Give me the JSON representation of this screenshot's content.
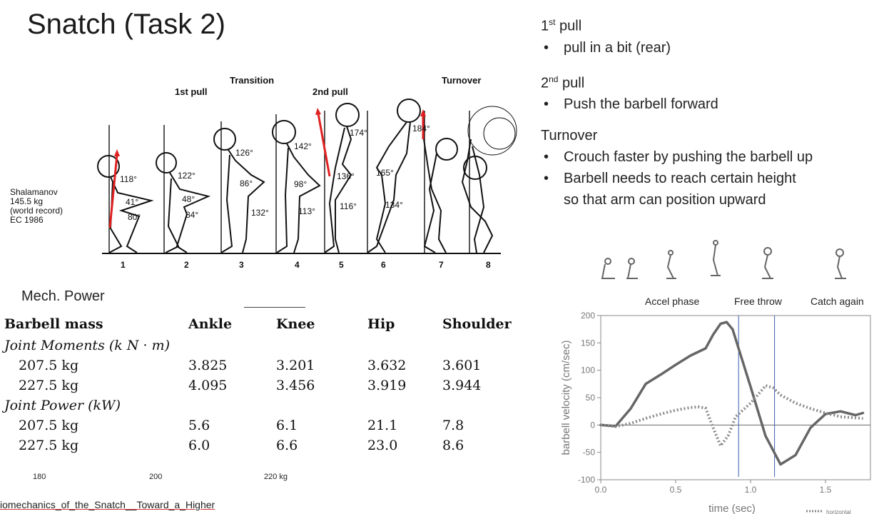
{
  "slide_title": "Snatch (Task 2)",
  "figure": {
    "phase_labels": {
      "first_pull": "1st pull",
      "transition": "Transition",
      "second_pull": "2nd pull",
      "turnover": "Turnover"
    },
    "subject_lines": [
      "Shalamanov",
      "145.5 kg",
      "(world record)",
      "EC 1986"
    ],
    "positions": [
      "1",
      "2",
      "3",
      "4",
      "5",
      "6",
      "7",
      "8"
    ],
    "angles": {
      "a1": "118°",
      "a2": "41°",
      "a3": "80°",
      "a4": "122°",
      "a5": "48°",
      "a6": "84°",
      "a7": "126°",
      "a8": "86°",
      "a9": "132°",
      "a10": "142°",
      "a11": "98°",
      "a12": "113°",
      "a13": "174°",
      "a14": "136°",
      "a15": "116°",
      "a16": "165°",
      "a17": "134°",
      "a18": "184°"
    }
  },
  "notes": {
    "first_pull": {
      "head_num": "1",
      "head_sup": "st",
      "head_rest": " pull",
      "items": [
        "pull in a bit (rear)"
      ]
    },
    "second_pull": {
      "head_num": "2",
      "head_sup": "nd",
      "head_rest": " pull",
      "items": [
        "Push the barbell forward"
      ]
    },
    "turnover": {
      "head": "Turnover",
      "items": [
        "Crouch faster by pushing the barbell up",
        "Barbell needs to reach certain height",
        "so that arm can position upward"
      ]
    }
  },
  "mech_power_label": "Mech. Power",
  "table": {
    "headers": [
      "Barbell mass",
      "Ankle",
      "Knee",
      "Hip",
      "Shoulder"
    ],
    "moments_label": "Joint Moments (k N · m)",
    "moments_rows": [
      [
        "207.5 kg",
        "3.825",
        "3.201",
        "3.632",
        "3.601"
      ],
      [
        "227.5 kg",
        "4.095",
        "3.456",
        "3.919",
        "3.944"
      ]
    ],
    "power_label": "Joint Power (kW)",
    "power_rows": [
      [
        "207.5 kg",
        "5.6",
        "6.1",
        "21.1",
        "7.8"
      ],
      [
        "227.5 kg",
        "6.0",
        "6.6",
        "23.0",
        "8.6"
      ]
    ],
    "scale_ticks": [
      "180",
      "200",
      "220 kg"
    ]
  },
  "filename_text": "iomechanics_of_the_Snatch__Toward_a_Higher",
  "chart_data": {
    "type": "line",
    "xlabel": "time (sec)",
    "ylabel": "barbell velocity (cm/sec)",
    "xlim": [
      0,
      1.8
    ],
    "ylim": [
      -100,
      200
    ],
    "xticks": [
      "0.0",
      "0.5",
      "1.0",
      "1.5"
    ],
    "xtick_values": [
      0,
      0.5,
      1.0,
      1.5
    ],
    "yticks": [
      "200",
      "150",
      "100",
      "50",
      "0",
      "-50",
      "-100"
    ],
    "ytick_values": [
      200,
      150,
      100,
      50,
      0,
      -50,
      -100
    ],
    "phase_labels": [
      "Accel phase",
      "Free throw",
      "Catch again"
    ],
    "phase_lines_x": [
      0.92,
      1.16
    ],
    "legend_entry": "horizontal",
    "series": [
      {
        "style": "solid",
        "x": [
          0.0,
          0.1,
          0.2,
          0.3,
          0.4,
          0.5,
          0.6,
          0.7,
          0.75,
          0.8,
          0.84,
          0.88,
          0.92,
          1.0,
          1.1,
          1.2,
          1.3,
          1.4,
          1.5,
          1.6,
          1.7,
          1.75
        ],
        "y": [
          0,
          -2,
          30,
          75,
          92,
          110,
          127,
          140,
          165,
          185,
          188,
          175,
          140,
          70,
          -20,
          -72,
          -55,
          -5,
          20,
          25,
          18,
          22
        ]
      },
      {
        "name": "horizontal",
        "style": "dotted",
        "x": [
          0.0,
          0.1,
          0.2,
          0.3,
          0.4,
          0.5,
          0.6,
          0.65,
          0.7,
          0.75,
          0.8,
          0.85,
          0.9,
          1.0,
          1.08,
          1.1,
          1.15,
          1.2,
          1.3,
          1.4,
          1.5,
          1.6,
          1.75
        ],
        "y": [
          0,
          -3,
          3,
          12,
          20,
          27,
          32,
          33,
          31,
          -5,
          -38,
          -20,
          15,
          40,
          65,
          72,
          68,
          55,
          40,
          30,
          22,
          15,
          12
        ]
      }
    ]
  }
}
